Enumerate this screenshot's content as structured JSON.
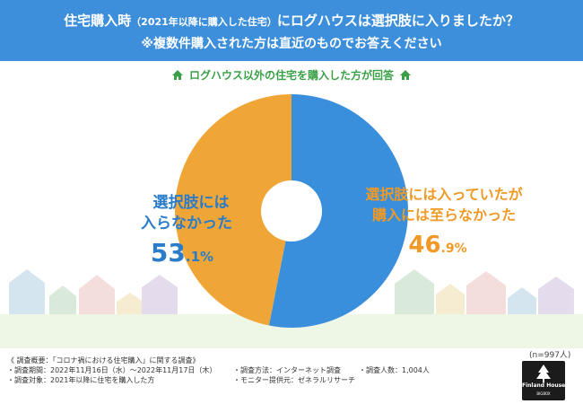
{
  "header": {
    "title_main_a": "住宅購入時",
    "title_paren": "（2021年以降に購入した住宅）",
    "title_main_b": "にログハウスは選択肢に入りましたか？",
    "title_note": "※複数件購入された方は直近のものでお答えください"
  },
  "subheading": "ログハウス以外の住宅を購入した方が回答",
  "chart_data": {
    "type": "pie",
    "variant": "donut",
    "slices": [
      {
        "label_lines": [
          "選択肢には",
          "入らなかった"
        ],
        "value": 53.1,
        "value_major": "53",
        "value_minor": ".1%",
        "color": "#3a8fdc"
      },
      {
        "label_lines": [
          "選択肢には入っていたが",
          "購入には至らなかった"
        ],
        "value": 46.9,
        "value_major": "46",
        "value_minor": ".9%",
        "color": "#f0a637"
      }
    ],
    "sample_size": "(n=997人)"
  },
  "footer": {
    "survey_outline": "《 調査概要：「コロナ禍における住宅購入」に関する調査》",
    "period": "・調査期間：2022年11月16日（水）～2022年11月17日（木）",
    "method": "・調査方法：インターネット調査",
    "respondents": "・調査人数：1,004人",
    "target": "・調査対象：2021年以降に住宅を購入した方",
    "provider": "・モニター提供元：ゼネラルリサーチ"
  },
  "logo": {
    "brand": "Finland House",
    "sub": "BIGBOX"
  },
  "colors": {
    "title_band": "#3d8fdc",
    "accent_green": "#39a047",
    "blue": "#3a8fdc",
    "orange": "#f0a637"
  }
}
